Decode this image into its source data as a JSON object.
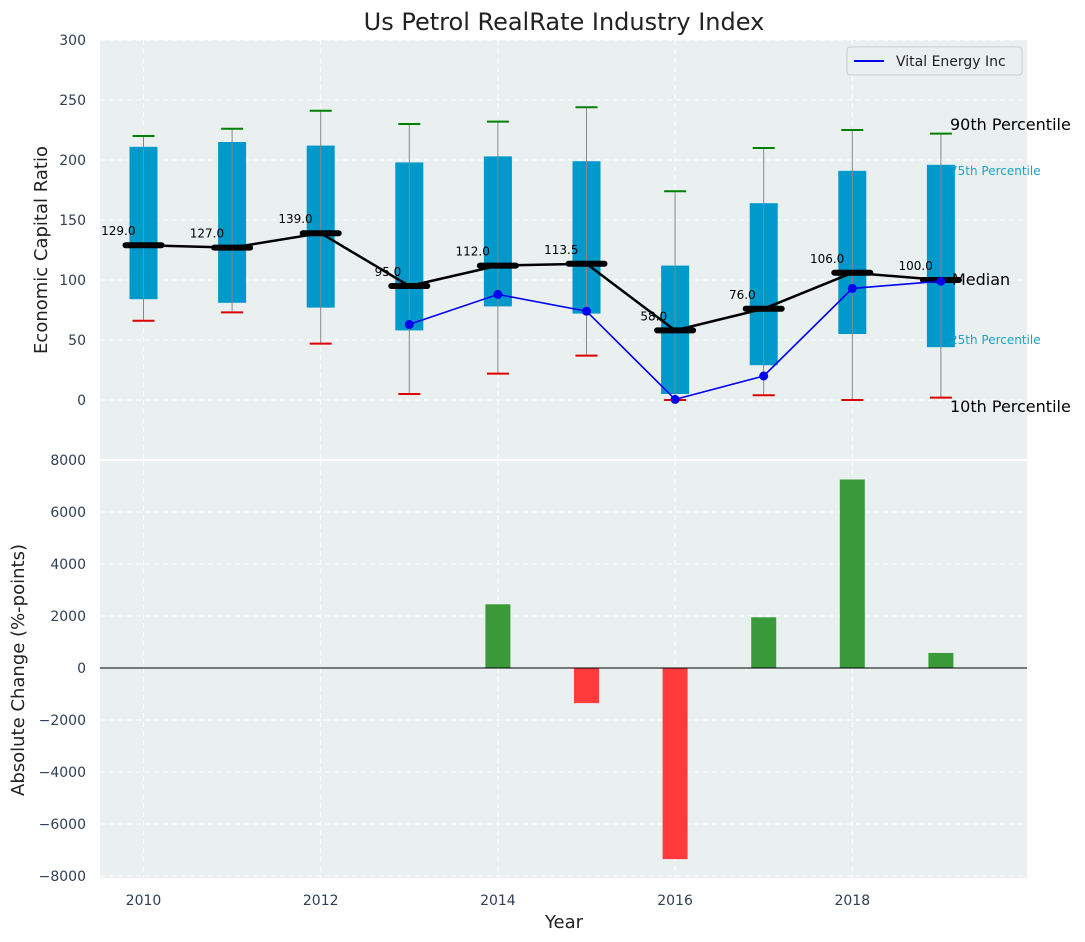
{
  "chart_data": [
    {
      "type": "box-percentile",
      "title": "Us Petrol RealRate Industry Index",
      "xlabel": "Year",
      "ylabel": "Economic Capital Ratio",
      "ylim": [
        0,
        300
      ],
      "yticks": [
        "0",
        "50",
        "100",
        "150",
        "200",
        "250",
        "300"
      ],
      "years": [
        2010,
        2011,
        2012,
        2013,
        2014,
        2015,
        2016,
        2017,
        2018,
        2019
      ],
      "p10": [
        66,
        73,
        47,
        5,
        22,
        37,
        0,
        4,
        0,
        2
      ],
      "p25": [
        84,
        81,
        77,
        58,
        78,
        72,
        5,
        29,
        55,
        44
      ],
      "median": [
        129.0,
        127.0,
        139.0,
        95.0,
        112.0,
        113.5,
        58.0,
        76.0,
        106.0,
        100.0
      ],
      "median_labels": [
        "129.0",
        "127.0",
        "139.0",
        "95.0",
        "112.0",
        "113.5",
        "58.0",
        "76.0",
        "106.0",
        "100.0"
      ],
      "p75": [
        211,
        215,
        212,
        198,
        203,
        199,
        112,
        164,
        191,
        196
      ],
      "p90": [
        220,
        226,
        241,
        230,
        232,
        244,
        174,
        210,
        225,
        222
      ],
      "company": {
        "name": "Vital Energy Inc",
        "years": [
          2013,
          2014,
          2015,
          2016,
          2017,
          2018,
          2019
        ],
        "values": [
          63,
          88,
          74,
          0.5,
          20,
          93,
          99
        ]
      },
      "annotations": {
        "p90": "90th Percentile",
        "p75": "75th Percentile",
        "median": "Median",
        "p25": "25th Percentile",
        "p10": "10th Percentile"
      },
      "legend": {
        "position": "top-right",
        "entries": [
          "Vital Energy Inc"
        ]
      },
      "colors": {
        "box": "#0099cc",
        "median": "#000000",
        "company": "#0000ee",
        "p90_cap": "#008000",
        "p10_cap": "#dd0000",
        "whisker": "#888888",
        "background": "#eaeff0"
      }
    },
    {
      "type": "bar",
      "xlabel": "Year",
      "ylabel": "Absolute Change (%-points)",
      "ylim": [
        -8000,
        8000
      ],
      "yticks": [
        "−8000",
        "−6000",
        "−4000",
        "−2000",
        "0",
        "2000",
        "4000",
        "6000",
        "8000"
      ],
      "xticks": [
        "2010",
        "2012",
        "2014",
        "2016",
        "2018"
      ],
      "years": [
        2014,
        2015,
        2016,
        2017,
        2018,
        2019
      ],
      "values": [
        2450,
        -1350,
        -7350,
        1950,
        7250,
        580
      ],
      "colors": {
        "positive": "#3a9a3a",
        "negative": "#ff3b3b"
      }
    }
  ]
}
